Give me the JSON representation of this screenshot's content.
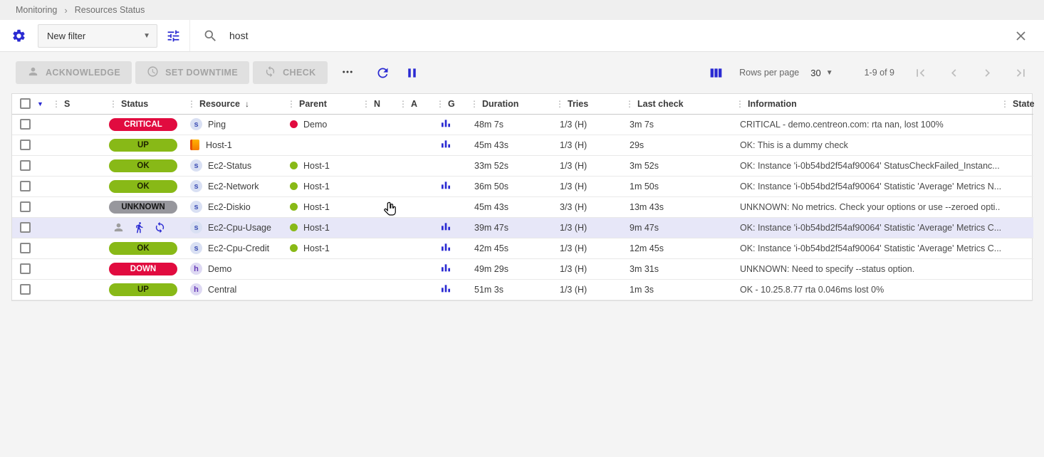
{
  "breadcrumb": {
    "items": [
      "Monitoring",
      "Resources Status"
    ],
    "separator": "›"
  },
  "filters": {
    "preset": "New filter",
    "search_value": "host"
  },
  "toolbar": {
    "acknowledge_label": "ACKNOWLEDGE",
    "set_downtime_label": "SET DOWNTIME",
    "check_label": "CHECK",
    "rows_per_page_label": "Rows per page",
    "rows_per_page_value": "30",
    "range": "1-9 of 9"
  },
  "colors": {
    "accent_blue": "#2a2ad2",
    "critical": "#e10b3f",
    "ok": "#88b917",
    "unknown": "#97979d",
    "row_highlight": "#e7e7f8"
  },
  "table": {
    "columns": [
      {
        "key": "s",
        "label": "S"
      },
      {
        "key": "status",
        "label": "Status"
      },
      {
        "key": "resource",
        "label": "Resource",
        "sorted": "desc"
      },
      {
        "key": "parent",
        "label": "Parent"
      },
      {
        "key": "n",
        "label": "N"
      },
      {
        "key": "a",
        "label": "A"
      },
      {
        "key": "g",
        "label": "G"
      },
      {
        "key": "duration",
        "label": "Duration"
      },
      {
        "key": "tries",
        "label": "Tries"
      },
      {
        "key": "last_check",
        "label": "Last check"
      },
      {
        "key": "information",
        "label": "Information"
      },
      {
        "key": "state",
        "label": "State"
      }
    ],
    "rows": [
      {
        "status": {
          "type": "pill",
          "label": "CRITICAL",
          "severity": "critical"
        },
        "resource": {
          "badge": "s",
          "name": "Ping"
        },
        "parent": {
          "dot": "critical",
          "name": "Demo"
        },
        "graph": true,
        "duration": "48m 7s",
        "tries": "1/3 (H)",
        "last_check": "3m 7s",
        "information": "CRITICAL - demo.centreon.com: rta nan, lost 100%"
      },
      {
        "status": {
          "type": "pill",
          "label": "UP",
          "severity": "ok"
        },
        "resource": {
          "badge": "host",
          "name": "Host-1"
        },
        "parent": null,
        "graph": true,
        "duration": "45m 43s",
        "tries": "1/3 (H)",
        "last_check": "29s",
        "information": "OK: This is a dummy check"
      },
      {
        "status": {
          "type": "pill",
          "label": "OK",
          "severity": "ok"
        },
        "resource": {
          "badge": "s",
          "name": "Ec2-Status"
        },
        "parent": {
          "dot": "ok",
          "name": "Host-1"
        },
        "graph": false,
        "duration": "33m 52s",
        "tries": "1/3 (H)",
        "last_check": "3m 52s",
        "information": "OK: Instance 'i-0b54bd2f54af90064' StatusCheckFailed_Instanc..."
      },
      {
        "status": {
          "type": "pill",
          "label": "OK",
          "severity": "ok"
        },
        "resource": {
          "badge": "s",
          "name": "Ec2-Network"
        },
        "parent": {
          "dot": "ok",
          "name": "Host-1"
        },
        "graph": true,
        "duration": "36m 50s",
        "tries": "1/3 (H)",
        "last_check": "1m 50s",
        "information": "OK: Instance 'i-0b54bd2f54af90064' Statistic 'Average' Metrics N..."
      },
      {
        "status": {
          "type": "pill",
          "label": "UNKNOWN",
          "severity": "unknown"
        },
        "resource": {
          "badge": "s",
          "name": "Ec2-Diskio"
        },
        "parent": {
          "dot": "ok",
          "name": "Host-1"
        },
        "graph": false,
        "duration": "45m 43s",
        "tries": "3/3 (H)",
        "last_check": "13m 43s",
        "information": "UNKNOWN: No metrics. Check your options or use --zeroed opti..."
      },
      {
        "highlighted": true,
        "status": {
          "type": "icons",
          "icons": [
            {
              "icon": "person",
              "name": "person-icon",
              "color": "#9e9e9e"
            },
            {
              "icon": "walk",
              "name": "acknowledged-icon",
              "color": "#2a2ad2"
            },
            {
              "icon": "sync",
              "name": "sync-icon",
              "color": "#2a2ad2"
            }
          ]
        },
        "resource": {
          "badge": "s",
          "name": "Ec2-Cpu-Usage"
        },
        "parent": {
          "dot": "ok",
          "name": "Host-1"
        },
        "graph": true,
        "duration": "39m 47s",
        "tries": "1/3 (H)",
        "last_check": "9m 47s",
        "information": "OK: Instance 'i-0b54bd2f54af90064' Statistic 'Average' Metrics C..."
      },
      {
        "status": {
          "type": "pill",
          "label": "OK",
          "severity": "ok"
        },
        "resource": {
          "badge": "s",
          "name": "Ec2-Cpu-Credit"
        },
        "parent": {
          "dot": "ok",
          "name": "Host-1"
        },
        "graph": true,
        "duration": "42m 45s",
        "tries": "1/3 (H)",
        "last_check": "12m 45s",
        "information": "OK: Instance 'i-0b54bd2f54af90064' Statistic 'Average' Metrics C..."
      },
      {
        "status": {
          "type": "pill",
          "label": "DOWN",
          "severity": "critical"
        },
        "resource": {
          "badge": "h",
          "name": "Demo"
        },
        "parent": null,
        "graph": true,
        "duration": "49m 29s",
        "tries": "1/3 (H)",
        "last_check": "3m 31s",
        "information": "UNKNOWN: Need to specify --status option."
      },
      {
        "status": {
          "type": "pill",
          "label": "UP",
          "severity": "ok"
        },
        "resource": {
          "badge": "h",
          "name": "Central"
        },
        "parent": null,
        "graph": true,
        "duration": "51m 3s",
        "tries": "1/3 (H)",
        "last_check": "1m 3s",
        "information": "OK - 10.25.8.77 rta 0.046ms lost 0%"
      }
    ]
  }
}
